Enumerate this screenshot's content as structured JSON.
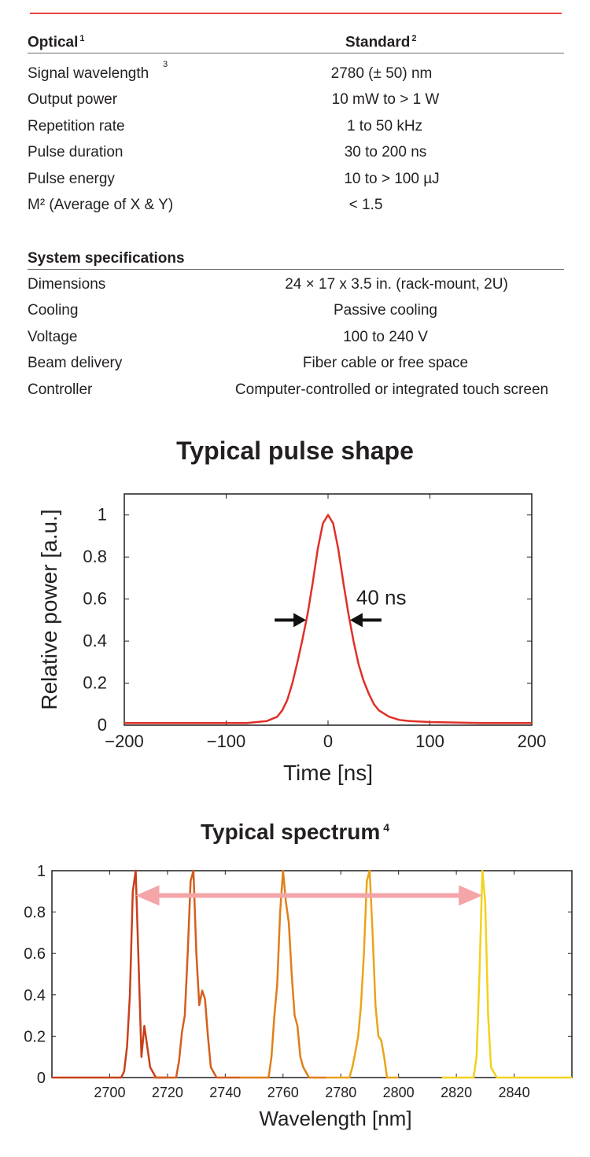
{
  "optical": {
    "title": "Optical",
    "title_note": "1",
    "standard": "Standard",
    "standard_note": "2",
    "rows": [
      {
        "label": "Signal wavelength",
        "note": "3",
        "value": "2780 (± 50) nm"
      },
      {
        "label": "Output power",
        "note": "",
        "value": "10 mW to > 1 W"
      },
      {
        "label": "Repetition rate",
        "note": "",
        "value": "1 to 50 kHz"
      },
      {
        "label": "Pulse duration",
        "note": "",
        "value": "30 to 200 ns"
      },
      {
        "label": "Pulse energy",
        "note": "",
        "value": "10 to > 100 µJ"
      },
      {
        "label": "M² (Average of X & Y)",
        "note": "",
        "value": "< 1.5"
      }
    ]
  },
  "system": {
    "title": "System specifications",
    "rows": [
      {
        "label": "Dimensions",
        "value": "24 × 17 x 3.5 in. (rack-mount, 2U)"
      },
      {
        "label": "Cooling",
        "value": "Passive cooling"
      },
      {
        "label": "Voltage",
        "value": "100 to 240 V"
      },
      {
        "label": "Beam delivery",
        "value": "Fiber cable or free space"
      },
      {
        "label": "Controller",
        "value": "Computer-controlled or integrated touch screen"
      }
    ]
  },
  "chart_data": [
    {
      "type": "line",
      "title": "Typical pulse shape",
      "xlabel": "Time [ns]",
      "ylabel": "Relative power [a.u.]",
      "xlim": [
        -200,
        200
      ],
      "ylim": [
        0,
        1.1
      ],
      "xticks": [
        -200,
        -100,
        0,
        100,
        200
      ],
      "xtick_labels": [
        "−200",
        "−100",
        "0",
        "100",
        "200"
      ],
      "yticks": [
        0,
        0.2,
        0.4,
        0.6,
        0.8,
        1
      ],
      "ytick_labels": [
        "0",
        "0.2",
        "0.4",
        "0.6",
        "0.8",
        "1"
      ],
      "annotation": "40 ns",
      "fwhm_markers": [
        -20,
        20
      ],
      "color": "#e03028",
      "series": [
        {
          "x": [
            -200,
            -150,
            -100,
            -80,
            -70,
            -60,
            -50,
            -45,
            -40,
            -35,
            -30,
            -25,
            -20,
            -15,
            -10,
            -5,
            0,
            5,
            10,
            15,
            20,
            25,
            30,
            35,
            40,
            45,
            50,
            60,
            70,
            80,
            100,
            150,
            200
          ],
          "y": [
            0.01,
            0.01,
            0.01,
            0.01,
            0.015,
            0.02,
            0.04,
            0.07,
            0.12,
            0.2,
            0.3,
            0.41,
            0.53,
            0.68,
            0.84,
            0.96,
            1.0,
            0.96,
            0.84,
            0.68,
            0.53,
            0.4,
            0.29,
            0.21,
            0.15,
            0.1,
            0.07,
            0.04,
            0.025,
            0.02,
            0.015,
            0.01,
            0.01
          ]
        }
      ]
    },
    {
      "type": "line",
      "title": "Typical spectrum",
      "title_note": "4",
      "xlabel": "Wavelength [nm]",
      "ylabel": "",
      "xlim": [
        2680,
        2860
      ],
      "ylim": [
        0,
        1
      ],
      "xticks": [
        2700,
        2720,
        2740,
        2760,
        2780,
        2800,
        2820,
        2840
      ],
      "xtick_labels": [
        "2700",
        "2720",
        "2740",
        "2760",
        "2780",
        "2800",
        "2820",
        "2840"
      ],
      "yticks": [
        0,
        0.2,
        0.4,
        0.6,
        0.8,
        1
      ],
      "ytick_labels": [
        "0",
        "0.2",
        "0.4",
        "0.6",
        "0.8",
        "1"
      ],
      "tuning_arrow": {
        "from": 2709,
        "to": 2829,
        "y": 0.88,
        "color": "#f4a5a8"
      },
      "series": [
        {
          "color": "#c8401c",
          "x": [
            2680,
            2704,
            2705,
            2706,
            2707,
            2708,
            2709,
            2710,
            2711,
            2712,
            2713,
            2714,
            2716,
            2720
          ],
          "y": [
            0,
            0,
            0.03,
            0.15,
            0.4,
            0.9,
            1.0,
            0.55,
            0.1,
            0.25,
            0.15,
            0.05,
            0,
            0
          ]
        },
        {
          "color": "#d45e1c",
          "x": [
            2715,
            2723,
            2724,
            2725,
            2726,
            2727,
            2728,
            2729,
            2730,
            2731,
            2732,
            2733,
            2734,
            2735,
            2737,
            2745
          ],
          "y": [
            0,
            0,
            0.08,
            0.22,
            0.3,
            0.6,
            0.95,
            1.0,
            0.6,
            0.35,
            0.42,
            0.38,
            0.2,
            0.05,
            0,
            0
          ]
        },
        {
          "color": "#e07e18",
          "x": [
            2745,
            2755,
            2756,
            2757,
            2758,
            2759,
            2760,
            2761,
            2762,
            2763,
            2764,
            2765,
            2766,
            2767,
            2769,
            2775
          ],
          "y": [
            0,
            0,
            0.1,
            0.3,
            0.45,
            0.8,
            1.0,
            0.85,
            0.75,
            0.5,
            0.3,
            0.25,
            0.1,
            0.05,
            0,
            0
          ]
        },
        {
          "color": "#eaa418",
          "x": [
            2775,
            2783,
            2784,
            2785,
            2786,
            2787,
            2788,
            2789,
            2790,
            2791,
            2792,
            2793,
            2794,
            2795,
            2796,
            2800
          ],
          "y": [
            0,
            0,
            0.05,
            0.12,
            0.2,
            0.35,
            0.6,
            0.95,
            1.0,
            0.7,
            0.35,
            0.2,
            0.18,
            0.1,
            0,
            0
          ]
        },
        {
          "color": "#f2d21c",
          "x": [
            2815,
            2826,
            2827,
            2828,
            2829,
            2830,
            2831,
            2832,
            2834,
            2860
          ],
          "y": [
            0,
            0,
            0.1,
            0.5,
            1.0,
            0.85,
            0.3,
            0.05,
            0,
            0
          ]
        }
      ]
    }
  ]
}
